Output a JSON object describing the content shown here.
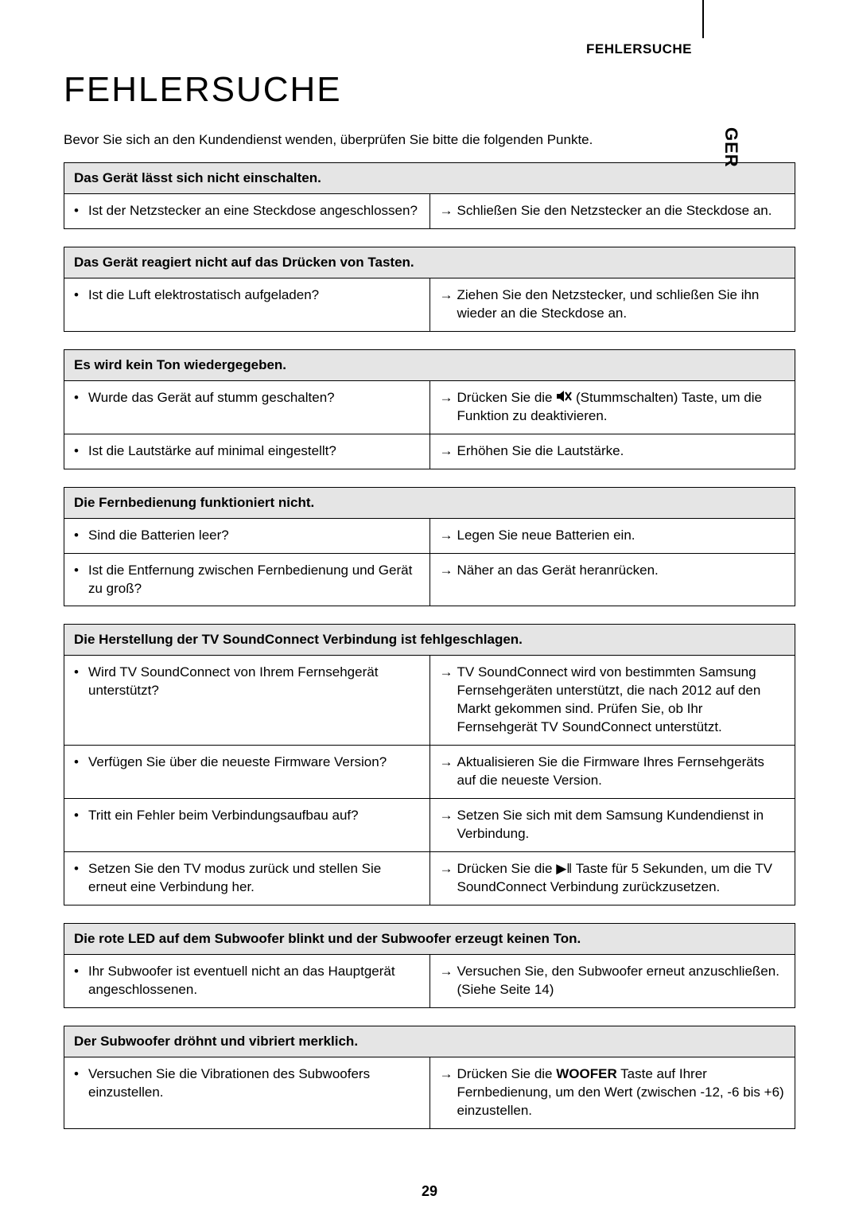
{
  "page": {
    "section_label": "FEHLERSUCHE",
    "lang_tab": "GER",
    "heading": "FEHLERSUCHE",
    "intro": "Bevor Sie sich an den Kundendienst wenden, überprüfen Sie bitte die folgenden Punkte.",
    "page_number": "29"
  },
  "tables": [
    {
      "header": "Das Gerät lässt sich nicht einschalten.",
      "rows": [
        {
          "q": "Ist der Netzstecker an eine Steckdose angeschlossen?",
          "a": "Schließen Sie den Netzstecker an die Steckdose an."
        }
      ]
    },
    {
      "header": "Das Gerät reagiert nicht auf das Drücken von Tasten.",
      "rows": [
        {
          "q": "Ist die Luft elektrostatisch aufgeladen?",
          "a": "Ziehen Sie den Netzstecker, und schließen Sie ihn wieder an die Steckdose an."
        }
      ]
    },
    {
      "header": "Es wird kein Ton wiedergegeben.",
      "rows": [
        {
          "q": "Wurde das Gerät auf stumm geschalten?",
          "a_pre": "Drücken Sie die ",
          "a_post": " (Stummschalten) Taste, um die Funktion zu deaktivieren.",
          "mute_icon": true
        },
        {
          "q": "Ist die Lautstärke auf minimal eingestellt?",
          "a": "Erhöhen Sie die Lautstärke."
        }
      ]
    },
    {
      "header": "Die Fernbedienung funktioniert nicht.",
      "rows": [
        {
          "q": "Sind die Batterien leer?",
          "a": "Legen Sie neue Batterien ein."
        },
        {
          "q": "Ist die Entfernung zwischen Fernbedienung und Gerät zu groß?",
          "a": "Näher an das Gerät heranrücken."
        }
      ]
    },
    {
      "header": "Die Herstellung der TV SoundConnect Verbindung ist fehlgeschlagen.",
      "rows": [
        {
          "q": "Wird TV SoundConnect von Ihrem Fernsehgerät unterstützt?",
          "a": "TV SoundConnect wird von bestimmten Samsung Fernsehgeräten unterstützt, die nach 2012 auf den Markt gekommen sind. Prüfen Sie, ob Ihr Fernsehgerät TV SoundConnect unterstützt."
        },
        {
          "q": "Verfügen Sie über die neueste Firmware Version?",
          "a": "Aktualisieren Sie die Firmware Ihres Fernsehgeräts auf die neueste Version."
        },
        {
          "q": "Tritt ein Fehler beim Verbindungsaufbau auf?",
          "a": "Setzen Sie sich mit dem Samsung Kundendienst in Verbindung."
        },
        {
          "q": "Setzen Sie den TV modus zurück und stellen Sie erneut eine Verbindung her.",
          "a": "Drücken Sie die ▶ǁ Taste für 5 Sekunden, um die TV SoundConnect Verbindung zurückzusetzen."
        }
      ]
    },
    {
      "header": "Die rote LED auf dem Subwoofer blinkt und der Subwoofer erzeugt keinen Ton.",
      "rows": [
        {
          "q": "Ihr Subwoofer ist eventuell nicht an das Hauptgerät angeschlossenen.",
          "a": "Versuchen Sie, den Subwoofer erneut anzuschließen. (Siehe Seite 14)"
        }
      ]
    },
    {
      "header": "Der Subwoofer dröhnt und vibriert merklich.",
      "rows": [
        {
          "q": "Versuchen Sie die Vibrationen des Subwoofers einzustellen.",
          "a_html": "Drücken Sie die <b>WOOFER</b> Taste auf Ihrer Fernbedienung, um den Wert (zwischen -12, -6 bis +6) einzustellen."
        }
      ]
    }
  ],
  "style": {
    "colors": {
      "header_bg": "#e5e5e5",
      "border": "#000000",
      "text": "#000000",
      "bg": "#ffffff"
    },
    "fonts": {
      "heading_size": 44,
      "body_size": 17,
      "label_size": 17,
      "page_num_size": 18
    }
  }
}
